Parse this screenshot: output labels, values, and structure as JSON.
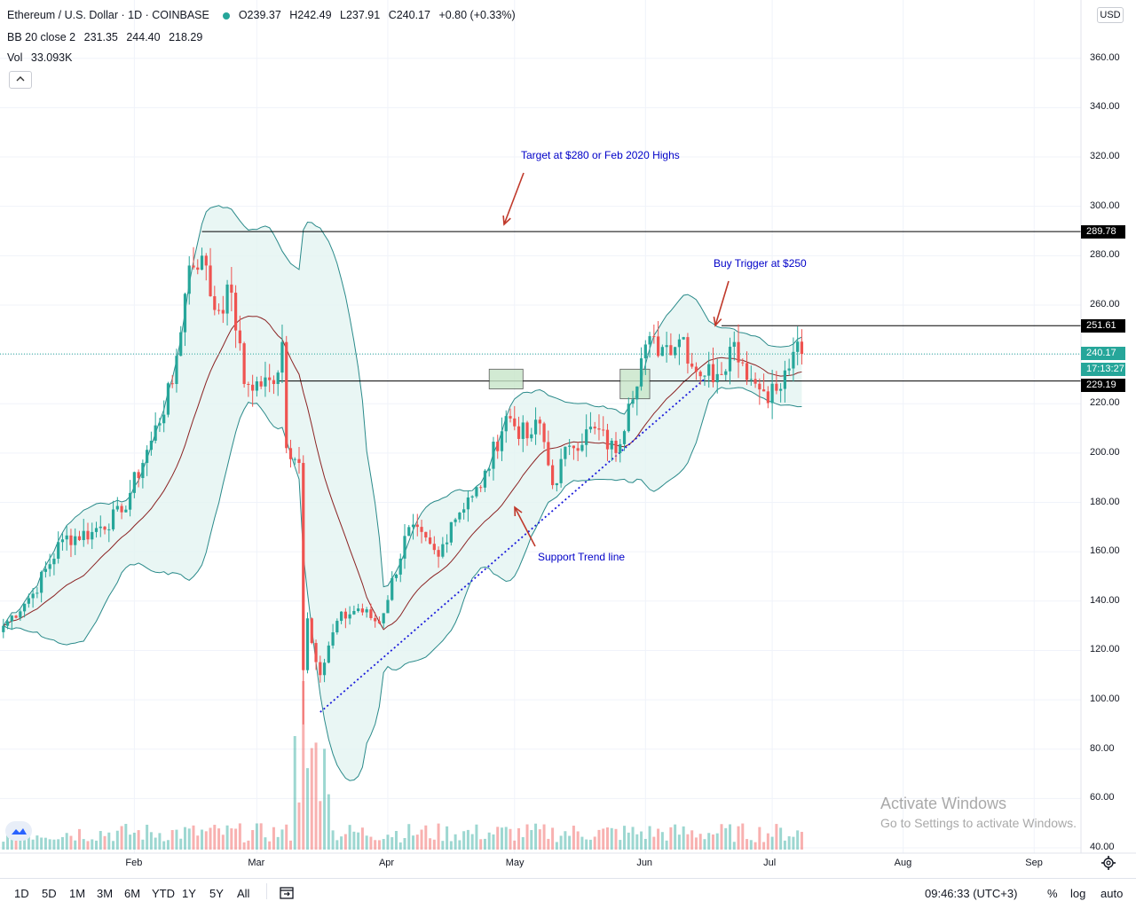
{
  "header": {
    "symbol": "Ethereum / U.S. Dollar · 1D · COINBASE",
    "open": "O239.37",
    "high": "H242.49",
    "low": "L237.91",
    "close": "C240.17",
    "change": "+0.80 (+0.33%)",
    "bb_label": "BB 20 close 2",
    "bb_basis": "231.35",
    "bb_upper": "244.40",
    "bb_lower": "218.29",
    "vol_label": "Vol",
    "vol_value": "33.093K",
    "collapse_icon": "chevron-up-icon",
    "currency_button": "USD"
  },
  "annotations": {
    "target": "Target at $280 or Feb 2020 Highs",
    "buy_trigger": "Buy Trigger at $250",
    "support": "Support Trend line"
  },
  "price_labels": {
    "resistance_high": "289.78",
    "buy_trigger": "251.61",
    "last_price": "240.17",
    "countdown": "17:13:27",
    "support_level": "229.19"
  },
  "colors": {
    "up": "#26a69a",
    "down": "#ef5350",
    "bb_band": "#2a8a8a",
    "bb_fill": "#e3f4f1",
    "bb_basis": "#8b2323",
    "trendline": "#1a1adb",
    "annotation": "#0000c8",
    "zone_fill": "#c8e6c9",
    "level_line": "#000000",
    "last_price_label": "#26a69a",
    "level_label": "#000000"
  },
  "bottom_bar": {
    "ranges": [
      "1D",
      "5D",
      "1M",
      "3M",
      "6M",
      "YTD",
      "1Y",
      "5Y",
      "All"
    ],
    "calendar_icon": "calendar-range-icon",
    "time": "09:46:33 (UTC+3)",
    "percent": "%",
    "log": "log",
    "auto": "auto",
    "settings_icon": "gear-icon"
  },
  "watermark": {
    "line1": "Activate Windows",
    "line2": "Go to Settings to activate Windows."
  },
  "chart_data": {
    "type": "candlestick",
    "title": "Ethereum / U.S. Dollar · 1D · COINBASE",
    "y_scale": "linear",
    "ylim": [
      40,
      380
    ],
    "y_ticks": [
      40,
      60,
      80,
      100,
      120,
      140,
      160,
      180,
      200,
      220,
      240,
      260,
      280,
      300,
      320,
      340,
      360
    ],
    "y_tick_labels": [
      "40.00",
      "60.00",
      "80.00",
      "100.00",
      "120.00",
      "140.00",
      "160.00",
      "180.00",
      "200.00",
      "220.00",
      "240.00",
      "260.00",
      "280.00",
      "300.00",
      "320.00",
      "340.00",
      "360.00"
    ],
    "x_ticks": [
      "Feb",
      "Mar",
      "Apr",
      "May",
      "Jun",
      "Jul",
      "Aug",
      "Sep"
    ],
    "x_tick_dates": [
      "2020-02-01",
      "2020-03-01",
      "2020-04-01",
      "2020-05-01",
      "2020-06-01",
      "2020-07-01",
      "2020-08-01",
      "2020-09-01"
    ],
    "grid": true,
    "horizontal_levels": [
      289.78,
      251.61,
      229.19
    ],
    "last_price": 240.17,
    "price_anchors": [
      {
        "date": "2020-01-01",
        "close": 130
      },
      {
        "date": "2020-01-08",
        "close": 143
      },
      {
        "date": "2020-01-15",
        "close": 165
      },
      {
        "date": "2020-01-22",
        "close": 168
      },
      {
        "date": "2020-01-29",
        "close": 176
      },
      {
        "date": "2020-02-05",
        "close": 205
      },
      {
        "date": "2020-02-10",
        "close": 228
      },
      {
        "date": "2020-02-14",
        "close": 276
      },
      {
        "date": "2020-02-17",
        "close": 280
      },
      {
        "date": "2020-02-20",
        "close": 258
      },
      {
        "date": "2020-02-24",
        "close": 265
      },
      {
        "date": "2020-02-27",
        "close": 228
      },
      {
        "date": "2020-03-05",
        "close": 228
      },
      {
        "date": "2020-03-07",
        "close": 245
      },
      {
        "date": "2020-03-08",
        "close": 202
      },
      {
        "date": "2020-03-11",
        "close": 196
      },
      {
        "date": "2020-03-12",
        "close": 112
      },
      {
        "date": "2020-03-13",
        "close": 133
      },
      {
        "date": "2020-03-16",
        "close": 110
      },
      {
        "date": "2020-03-20",
        "close": 132
      },
      {
        "date": "2020-03-25",
        "close": 137
      },
      {
        "date": "2020-03-30",
        "close": 131
      },
      {
        "date": "2020-04-06",
        "close": 170
      },
      {
        "date": "2020-04-13",
        "close": 158
      },
      {
        "date": "2020-04-16",
        "close": 172
      },
      {
        "date": "2020-04-20",
        "close": 182
      },
      {
        "date": "2020-04-23",
        "close": 186
      },
      {
        "date": "2020-04-29",
        "close": 215
      },
      {
        "date": "2020-05-04",
        "close": 206
      },
      {
        "date": "2020-05-07",
        "close": 212
      },
      {
        "date": "2020-05-10",
        "close": 187
      },
      {
        "date": "2020-05-14",
        "close": 203
      },
      {
        "date": "2020-05-20",
        "close": 210
      },
      {
        "date": "2020-05-25",
        "close": 200
      },
      {
        "date": "2020-05-28",
        "close": 220
      },
      {
        "date": "2020-06-01",
        "close": 244
      },
      {
        "date": "2020-06-05",
        "close": 243
      },
      {
        "date": "2020-06-10",
        "close": 247
      },
      {
        "date": "2020-06-12",
        "close": 235
      },
      {
        "date": "2020-06-18",
        "close": 232
      },
      {
        "date": "2020-06-22",
        "close": 245
      },
      {
        "date": "2020-06-26",
        "close": 230
      },
      {
        "date": "2020-06-29",
        "close": 225
      },
      {
        "date": "2020-07-03",
        "close": 226
      },
      {
        "date": "2020-07-06",
        "close": 241
      },
      {
        "date": "2020-07-08",
        "close": 240
      }
    ],
    "volume": {
      "last": "33.093K"
    },
    "indicators": {
      "bollinger": {
        "length": 20,
        "source": "close",
        "mult": 2,
        "basis": 231.35,
        "upper": 244.4,
        "lower": 218.29
      }
    }
  }
}
